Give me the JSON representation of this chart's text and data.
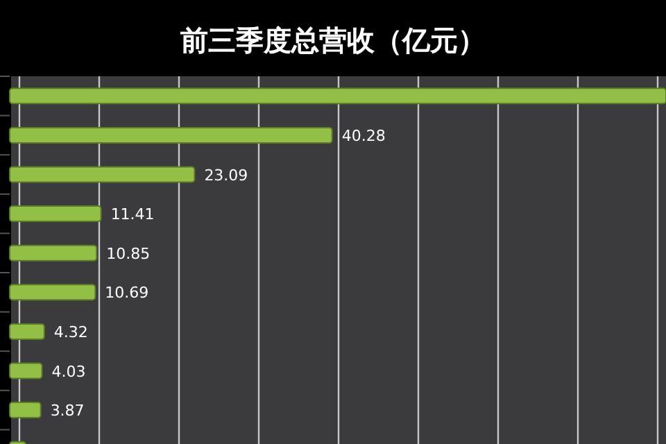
{
  "chart_data": {
    "type": "bar",
    "orientation": "horizontal",
    "title": "前三季度总营收（亿元）",
    "categories": [
      null,
      null,
      null,
      null,
      null,
      null,
      null,
      null,
      null,
      null
    ],
    "values": [
      82,
      40.28,
      23.09,
      11.41,
      10.85,
      10.69,
      4.32,
      4.03,
      3.87,
      2
    ],
    "value_labels": [
      null,
      "40.28",
      "23.09",
      "11.41",
      "10.85",
      "10.69",
      "4.32",
      "4.03",
      "3.87",
      null
    ],
    "color": "#92c047",
    "xlim": [
      0,
      82
    ],
    "grid": "x"
  }
}
